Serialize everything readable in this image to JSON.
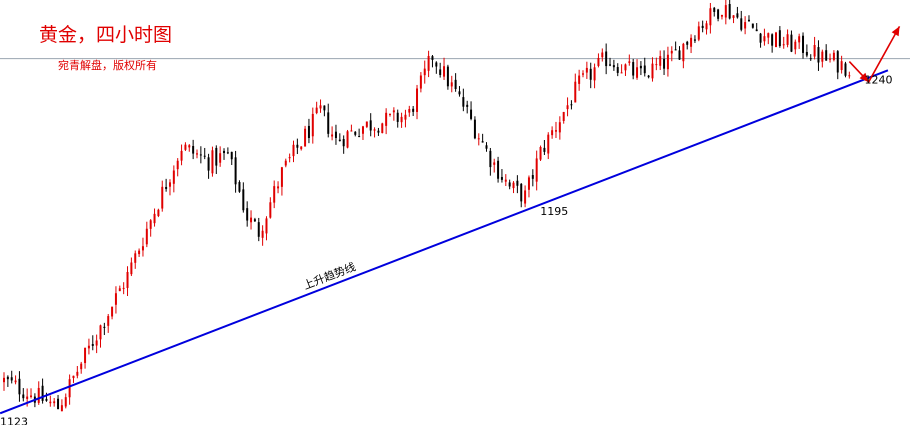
{
  "title": "黄金，四小时图",
  "subtitle": "宛青解盘，版权所有",
  "colors": {
    "title": "#e00000",
    "up_candle": "#e00000",
    "down_candle": "#000000",
    "trendline": "#0000dd",
    "resistance": "#9aa4b1",
    "arrow": "#e00000",
    "label": "#000000"
  },
  "chart_data": {
    "type": "candlestick",
    "title": "黄金，四小时图",
    "subtitle": "宛青解盘，版权所有",
    "xlabel": "",
    "ylabel": "",
    "grid": false,
    "legend": "none",
    "y_range": [
      1119,
      1264
    ],
    "bar_count": 220,
    "anchors": [
      {
        "bar": 0,
        "price": 1134
      },
      {
        "bar": 8,
        "price": 1129
      },
      {
        "bar": 14,
        "price": 1125
      },
      {
        "bar": 24,
        "price": 1150
      },
      {
        "bar": 32,
        "price": 1170
      },
      {
        "bar": 38,
        "price": 1189
      },
      {
        "bar": 46,
        "price": 1214
      },
      {
        "bar": 53,
        "price": 1209
      },
      {
        "bar": 58,
        "price": 1211
      },
      {
        "bar": 63,
        "price": 1190
      },
      {
        "bar": 66,
        "price": 1185
      },
      {
        "bar": 72,
        "price": 1205
      },
      {
        "bar": 82,
        "price": 1226
      },
      {
        "bar": 86,
        "price": 1216
      },
      {
        "bar": 93,
        "price": 1221
      },
      {
        "bar": 100,
        "price": 1223
      },
      {
        "bar": 105,
        "price": 1225
      },
      {
        "bar": 111,
        "price": 1245
      },
      {
        "bar": 119,
        "price": 1228
      },
      {
        "bar": 126,
        "price": 1210
      },
      {
        "bar": 131,
        "price": 1200
      },
      {
        "bar": 135,
        "price": 1197
      },
      {
        "bar": 139,
        "price": 1212
      },
      {
        "bar": 149,
        "price": 1235
      },
      {
        "bar": 156,
        "price": 1244
      },
      {
        "bar": 165,
        "price": 1238
      },
      {
        "bar": 173,
        "price": 1244
      },
      {
        "bar": 180,
        "price": 1255
      },
      {
        "bar": 186,
        "price": 1262
      },
      {
        "bar": 193,
        "price": 1255
      },
      {
        "bar": 200,
        "price": 1250
      },
      {
        "bar": 207,
        "price": 1248
      },
      {
        "bar": 212,
        "price": 1244
      },
      {
        "bar": 215,
        "price": 1243
      },
      {
        "bar": 219,
        "price": 1241
      }
    ],
    "trendline": {
      "name": "上升趋势线",
      "from": {
        "bar": -1,
        "price": 1123
      },
      "to": {
        "bar": 229,
        "price": 1240
      }
    },
    "resistance_level": {
      "price": 1244
    },
    "forecast_path": [
      {
        "bar": 219,
        "price": 1243
      },
      {
        "bar": 224,
        "price": 1236
      },
      {
        "bar": 232,
        "price": 1255
      }
    ],
    "annotations": [
      {
        "text": "1123",
        "bar": 0,
        "price": 1123,
        "anchor": "below-right"
      },
      {
        "text": "1195",
        "bar": 141,
        "price": 1195,
        "anchor": "below"
      },
      {
        "text": "1240",
        "bar": 225,
        "price": 1240,
        "anchor": "below"
      },
      {
        "text": "上升趋势线",
        "bar": 78,
        "price": 1155,
        "anchor": "along-trendline"
      }
    ]
  }
}
